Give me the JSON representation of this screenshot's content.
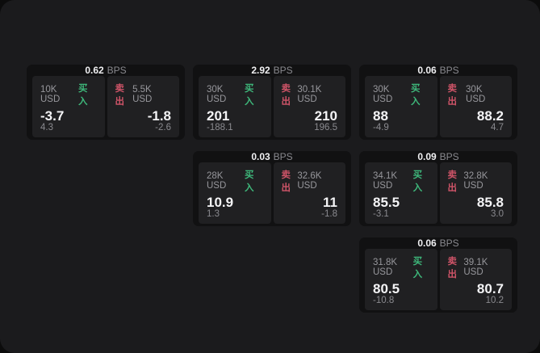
{
  "labels": {
    "bps": "BPS",
    "buy": "买入",
    "sell": "卖出"
  },
  "colors": {
    "buy": "#3eb87b",
    "sell": "#cf5468",
    "window_bg": "#1b1b1d",
    "card_bg": "#111112",
    "panel_bg": "#202022"
  },
  "cards": [
    {
      "row": 1,
      "col": 1,
      "bps": "0.62",
      "buy": {
        "amount": "10K USD",
        "price": "-3.7",
        "delta": "4.3"
      },
      "sell": {
        "amount": "5.5K USD",
        "price": "-1.8",
        "delta": "-2.6"
      }
    },
    {
      "row": 1,
      "col": 2,
      "bps": "2.92",
      "buy": {
        "amount": "30K USD",
        "price": "201",
        "delta": "-188.1"
      },
      "sell": {
        "amount": "30.1K USD",
        "price": "210",
        "delta": "196.5"
      }
    },
    {
      "row": 1,
      "col": 3,
      "bps": "0.06",
      "buy": {
        "amount": "30K USD",
        "price": "88",
        "delta": "-4.9"
      },
      "sell": {
        "amount": "30K USD",
        "price": "88.2",
        "delta": "4.7"
      }
    },
    {
      "row": 2,
      "col": 2,
      "bps": "0.03",
      "buy": {
        "amount": "28K USD",
        "price": "10.9",
        "delta": "1.3"
      },
      "sell": {
        "amount": "32.6K USD",
        "price": "11",
        "delta": "-1.8"
      }
    },
    {
      "row": 2,
      "col": 3,
      "bps": "0.09",
      "buy": {
        "amount": "34.1K USD",
        "price": "85.5",
        "delta": "-3.1"
      },
      "sell": {
        "amount": "32.8K USD",
        "price": "85.8",
        "delta": "3.0"
      }
    },
    {
      "row": 3,
      "col": 3,
      "bps": "0.06",
      "buy": {
        "amount": "31.8K USD",
        "price": "80.5",
        "delta": "-10.8"
      },
      "sell": {
        "amount": "39.1K USD",
        "price": "80.7",
        "delta": "10.2"
      }
    }
  ]
}
